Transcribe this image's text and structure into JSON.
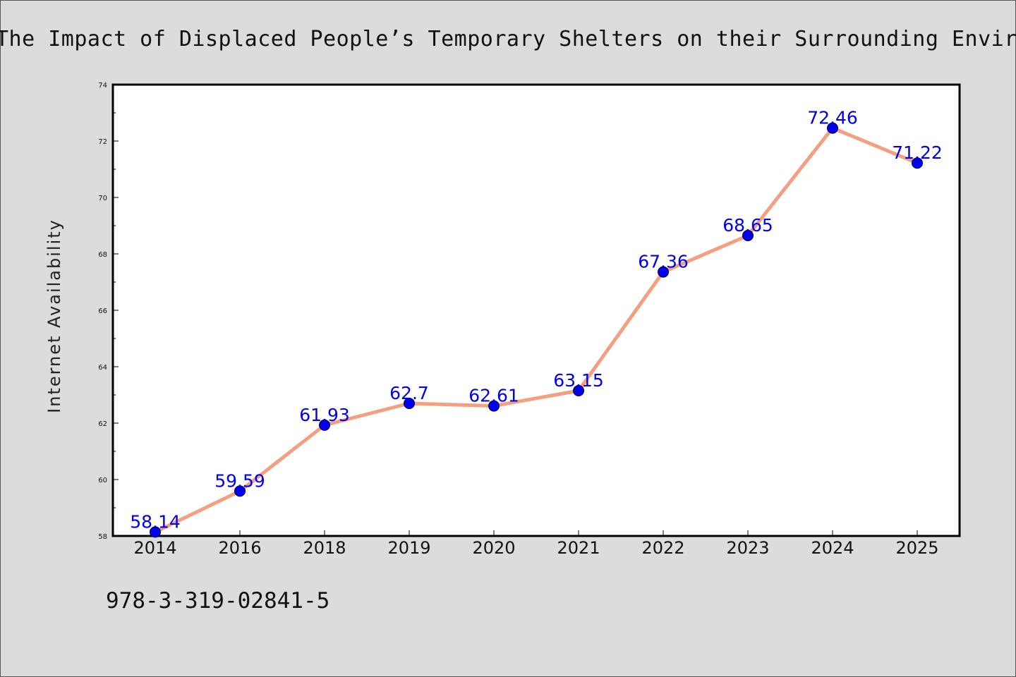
{
  "title": "The Impact of Displaced People’s Temporary Shelters on their Surrounding Environment",
  "footer": "978-3-319-02841-5",
  "chart_data": {
    "type": "line",
    "title": "The Impact of Displaced People’s Temporary Shelters on their Surrounding Environment",
    "xlabel": "",
    "ylabel": "Internet Availability",
    "categories": [
      "2014",
      "2016",
      "2018",
      "2019",
      "2020",
      "2021",
      "2022",
      "2023",
      "2024",
      "2025"
    ],
    "values": [
      58.14,
      59.59,
      61.93,
      62.7,
      62.61,
      63.15,
      67.36,
      68.65,
      72.46,
      71.22
    ],
    "data_labels": [
      "58.14",
      "59.59",
      "61.93",
      "62.7",
      "62.61",
      "63.15",
      "67.36",
      "68.65",
      "72.46",
      "71.22"
    ],
    "ylim": [
      58,
      74
    ],
    "yticks": [
      58,
      60,
      62,
      64,
      66,
      68,
      70,
      72,
      74
    ],
    "grid": false,
    "legend": "none",
    "colors": {
      "line": "#f4a080",
      "marker": "#0000ee",
      "label": "#0000ee",
      "background": "#dcdcdc",
      "plot": "#ffffff"
    }
  }
}
